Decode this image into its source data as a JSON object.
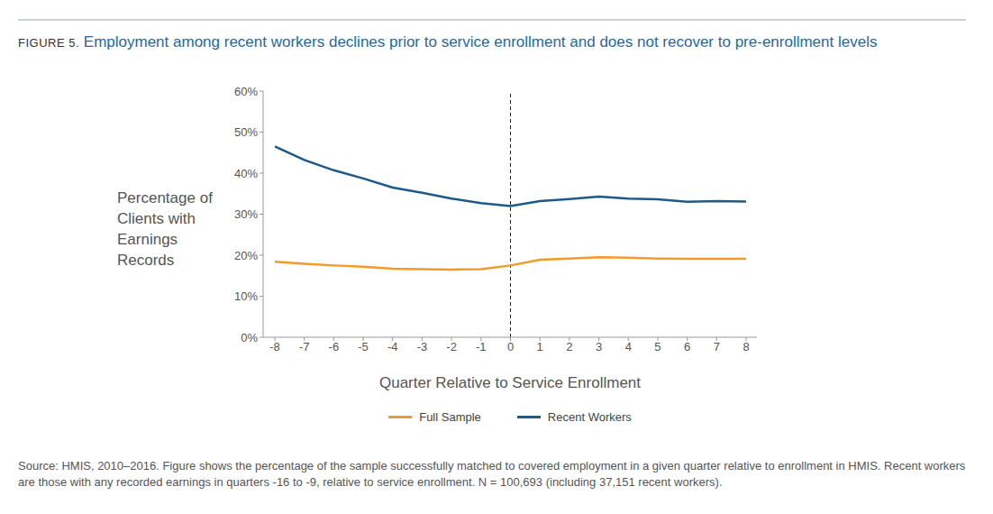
{
  "chart_data": {
    "type": "line",
    "figure_label": "FIGURE 5.",
    "title": "Employment among recent workers declines prior to service enrollment and does not recover to pre-enrollment levels",
    "x_label": "Quarter Relative to Service Enrollment",
    "y_label": "Percentage of Clients with Earnings Records",
    "source": "Source: HMIS, 2010–2016. Figure shows the percentage of the sample successfully matched to covered employment in a given quarter relative to enrollment in HMIS. Recent workers are those with any recorded earnings in quarters -16 to -9, relative to service enrollment. N = 100,693 (including 37,151 recent workers).",
    "x": [
      -8,
      -7,
      -6,
      -5,
      -4,
      -3,
      -2,
      -1,
      0,
      1,
      2,
      3,
      4,
      5,
      6,
      7,
      8
    ],
    "series": [
      {
        "name": "Full Sample",
        "color": "#f39a2b",
        "values": [
          18.4,
          17.9,
          17.5,
          17.2,
          16.7,
          16.6,
          16.5,
          16.6,
          17.5,
          18.9,
          19.2,
          19.5,
          19.4,
          19.2,
          19.1,
          19.1,
          19.1
        ]
      },
      {
        "name": "Recent Workers",
        "color": "#1d5a8a",
        "values": [
          46.5,
          43.2,
          40.7,
          38.7,
          36.5,
          35.2,
          33.8,
          32.7,
          32.0,
          33.2,
          33.7,
          34.3,
          33.8,
          33.6,
          33.0,
          33.2,
          33.1
        ]
      }
    ],
    "xlim": [
      -8,
      8
    ],
    "xticks": [
      -8,
      -7,
      -6,
      -5,
      -4,
      -3,
      -2,
      -1,
      0,
      1,
      2,
      3,
      4,
      5,
      6,
      7,
      8
    ],
    "ylim": [
      0,
      60
    ],
    "yticks": [
      {
        "value": 0,
        "label": "0%"
      },
      {
        "value": 10,
        "label": "10%"
      },
      {
        "value": 20,
        "label": "20%"
      },
      {
        "value": 30,
        "label": "30%"
      },
      {
        "value": 40,
        "label": "40%"
      },
      {
        "value": 50,
        "label": "50%"
      },
      {
        "value": 60,
        "label": "60%"
      }
    ],
    "reference_line_x": 0,
    "grid": false,
    "legend": "bottom"
  }
}
